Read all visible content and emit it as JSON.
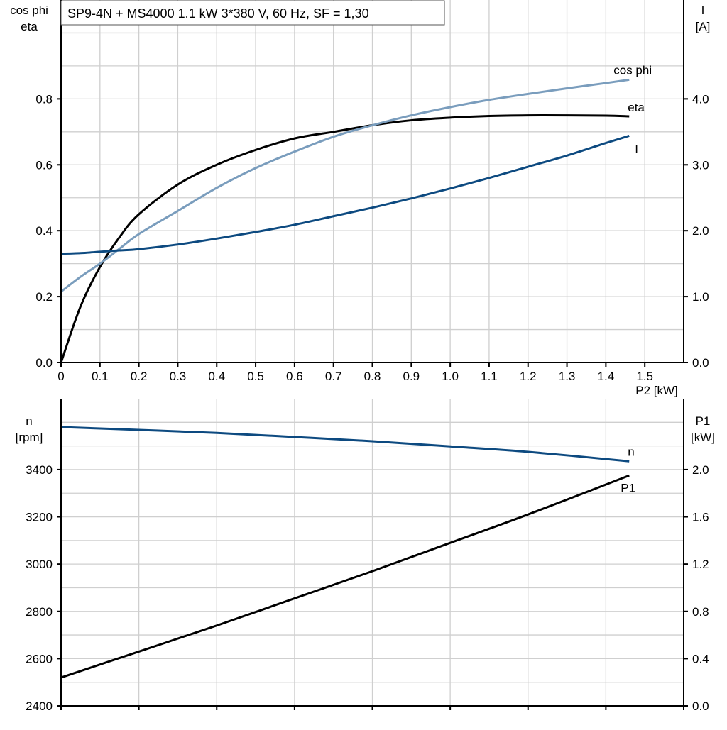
{
  "title": "SP9-4N + MS4000   1.1 kW   3*380 V, 60 Hz, SF = 1,30",
  "colors": {
    "eta": "#000000",
    "cos_phi": "#7a9dbd",
    "I": "#0d4a80",
    "n": "#0d4a80",
    "P1": "#000000",
    "grid": "#cfcfcf"
  },
  "chart_data": [
    {
      "type": "line",
      "xlabel": "P2 [kW]",
      "xlim": [
        0,
        1.6
      ],
      "xticks": [
        "0",
        "0.1",
        "0.2",
        "0.3",
        "0.4",
        "0.5",
        "0.6",
        "0.7",
        "0.8",
        "0.9",
        "1.0",
        "1.1",
        "1.2",
        "1.3",
        "1.4",
        "1.5"
      ],
      "ylabel_left": [
        "cos phi",
        "eta"
      ],
      "ylim_left": [
        0,
        1.1
      ],
      "yticks_left": [
        "0.0",
        "0.2",
        "0.4",
        "0.6",
        "0.8"
      ],
      "ylabel_right": [
        "I",
        "[A]"
      ],
      "ylim_right": [
        0,
        5.5
      ],
      "yticks_right": [
        "0.0",
        "1.0",
        "2.0",
        "3.0",
        "4.0"
      ],
      "grid": true,
      "x": [
        0,
        0.05,
        0.1,
        0.15,
        0.2,
        0.3,
        0.4,
        0.5,
        0.6,
        0.7,
        0.8,
        0.9,
        1.0,
        1.1,
        1.2,
        1.3,
        1.4,
        1.46
      ],
      "series": [
        {
          "name": "eta",
          "axis": "left",
          "values": [
            0,
            0.17,
            0.29,
            0.38,
            0.45,
            0.54,
            0.6,
            0.645,
            0.68,
            0.7,
            0.72,
            0.735,
            0.743,
            0.748,
            0.75,
            0.75,
            0.749,
            0.747
          ]
        },
        {
          "name": "cos phi",
          "axis": "left",
          "values": [
            0.215,
            0.26,
            0.3,
            0.345,
            0.39,
            0.46,
            0.53,
            0.59,
            0.64,
            0.685,
            0.72,
            0.75,
            0.775,
            0.797,
            0.815,
            0.832,
            0.848,
            0.858
          ]
        },
        {
          "name": "I",
          "axis": "right",
          "values": [
            1.65,
            1.66,
            1.68,
            1.7,
            1.72,
            1.79,
            1.88,
            1.98,
            2.09,
            2.22,
            2.35,
            2.49,
            2.64,
            2.8,
            2.97,
            3.14,
            3.33,
            3.44
          ]
        }
      ]
    },
    {
      "type": "line",
      "xlim": [
        0,
        1.6
      ],
      "ylabel_left": [
        "n",
        "[rpm]"
      ],
      "ylim_left": [
        2400,
        3700
      ],
      "yticks_left": [
        "2400",
        "2600",
        "2800",
        "3000",
        "3200",
        "3400"
      ],
      "ylabel_right": [
        "P1",
        "[kW]"
      ],
      "ylim_right": [
        0,
        2.6
      ],
      "yticks_right": [
        "0.0",
        "0.4",
        "0.8",
        "1.2",
        "1.6",
        "2.0"
      ],
      "grid": true,
      "x": [
        0,
        0.2,
        0.4,
        0.6,
        0.8,
        1.0,
        1.2,
        1.46
      ],
      "series": [
        {
          "name": "n",
          "axis": "left",
          "values": [
            3580,
            3568,
            3555,
            3538,
            3520,
            3498,
            3475,
            3435
          ]
        },
        {
          "name": "P1",
          "axis": "right",
          "values": [
            0.24,
            0.46,
            0.68,
            0.91,
            1.14,
            1.38,
            1.62,
            1.95
          ]
        }
      ]
    }
  ]
}
